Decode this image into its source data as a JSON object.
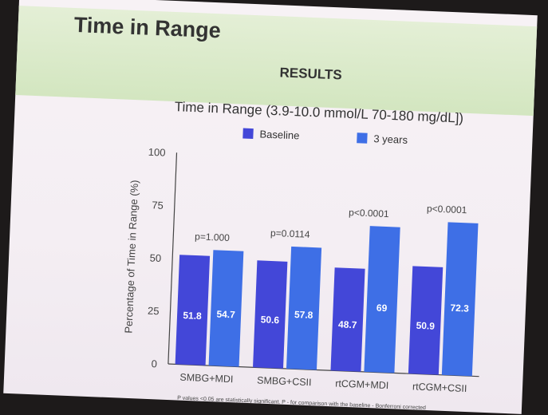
{
  "slide": {
    "title": "Time in Range",
    "section": "RESULTS",
    "footnote": "P values <0.05 are statistically significant. P - for comparison with the baseline - Bonferroni corrected"
  },
  "chart_data": {
    "type": "bar",
    "title": "Time in Range (3.9-10.0 mmol/L 70-180 mg/dL])",
    "ylabel": "Percentage of Time in Range (%)",
    "xlabel": "",
    "ylim": [
      0,
      100
    ],
    "yticks": [
      0,
      25,
      50,
      75,
      100
    ],
    "categories": [
      "SMBG+MDI",
      "SMBG+CSII",
      "rtCGM+MDI",
      "rtCGM+CSII"
    ],
    "series": [
      {
        "name": "Baseline",
        "color": "#4347d8",
        "values": [
          51.8,
          50.6,
          48.7,
          50.9
        ]
      },
      {
        "name": "3 years",
        "color": "#3e6fe6",
        "values": [
          54.7,
          57.8,
          69,
          72.3
        ]
      }
    ],
    "value_labels": [
      [
        "51.8",
        "50.6",
        "48.7",
        "50.9"
      ],
      [
        "54.7",
        "57.8",
        "69",
        "72.3"
      ]
    ],
    "p_values": [
      "p=1.000",
      "p=0.0114",
      "p<0.0001",
      "p<0.0001"
    ],
    "legend_position": "top",
    "grid": false
  }
}
